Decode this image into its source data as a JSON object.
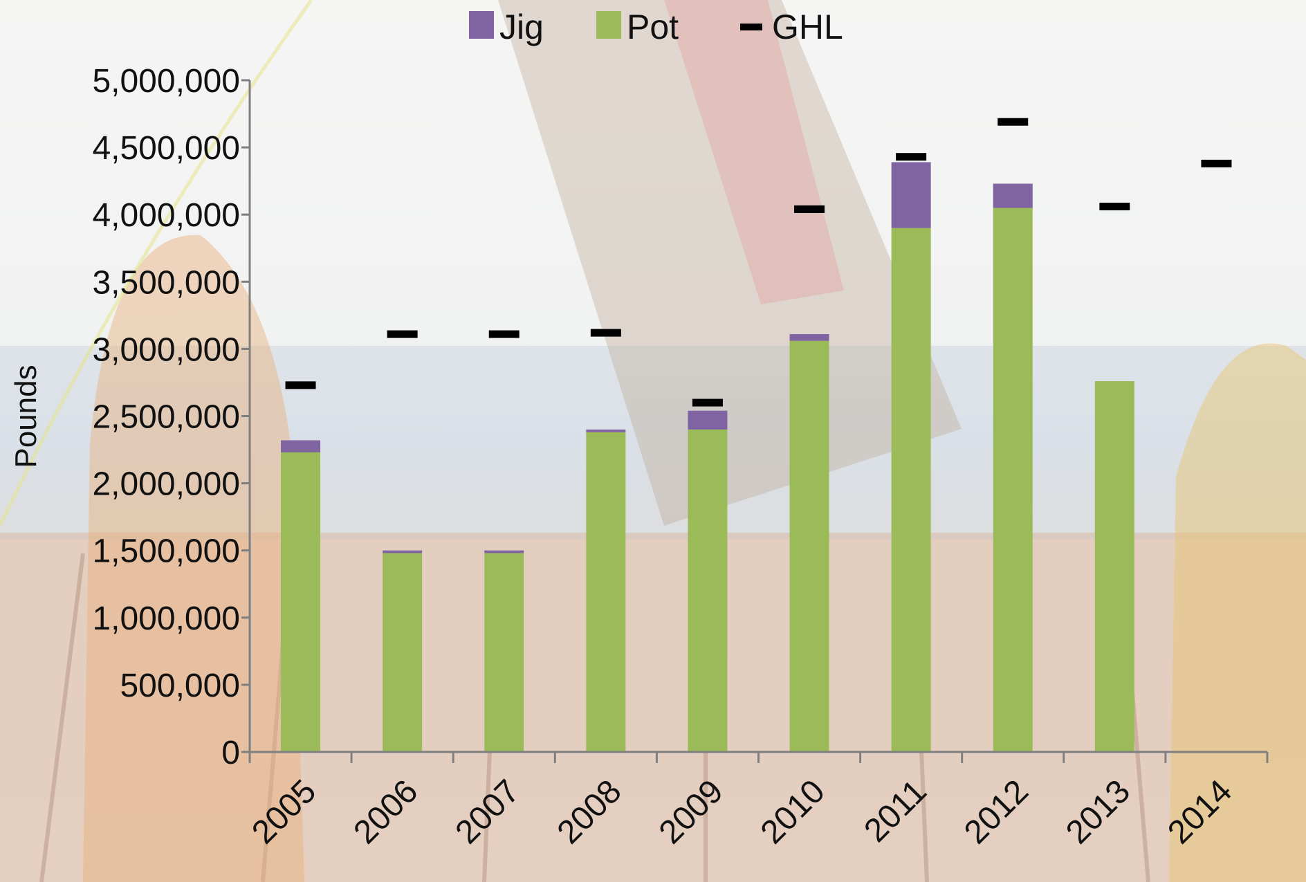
{
  "chart_data": {
    "type": "bar",
    "stacked": true,
    "categories": [
      "2005",
      "2006",
      "2007",
      "2008",
      "2009",
      "2010",
      "2011",
      "2012",
      "2013",
      "2014"
    ],
    "series": [
      {
        "name": "Pot",
        "kind": "bar",
        "color": "#9bbb59",
        "values": [
          2230000,
          1480000,
          1480000,
          2380000,
          2400000,
          3060000,
          3900000,
          4050000,
          2760000,
          0
        ]
      },
      {
        "name": "Jig",
        "kind": "bar",
        "color": "#8064a2",
        "values": [
          90000,
          20000,
          20000,
          20000,
          140000,
          50000,
          490000,
          180000,
          0,
          0
        ]
      },
      {
        "name": "GHL",
        "kind": "marker",
        "color": "#000000",
        "values": [
          2730000,
          3110000,
          3110000,
          3120000,
          2600000,
          4040000,
          4430000,
          4690000,
          4060000,
          4380000
        ]
      }
    ],
    "legend": {
      "order": [
        "Jig",
        "Pot",
        "GHL"
      ],
      "position": "top"
    },
    "title": "",
    "xlabel": "",
    "ylabel": "Pounds",
    "ylim": [
      0,
      5000000
    ],
    "yticks": [
      0,
      500000,
      1000000,
      1500000,
      2000000,
      2500000,
      3000000,
      3500000,
      4000000,
      4500000,
      5000000
    ],
    "ytick_labels": [
      "0",
      "500,000",
      "1,000,000",
      "1,500,000",
      "2,000,000",
      "2,500,000",
      "3,000,000",
      "3,500,000",
      "4,000,000",
      "4,500,000",
      "5,000,000"
    ],
    "grid": false
  }
}
